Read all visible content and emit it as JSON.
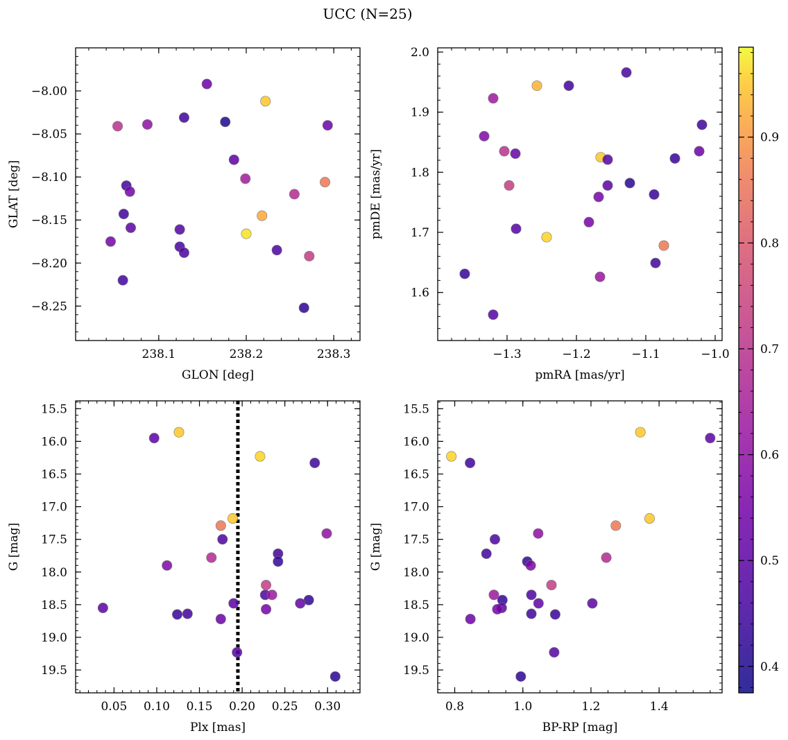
{
  "figure": {
    "title": "UCC (N=25)"
  },
  "colorbar": {
    "min": 0.375,
    "max": 0.985,
    "ticks": [
      0.4,
      0.5,
      0.6,
      0.7,
      0.8,
      0.9
    ],
    "tick_labels": [
      "0.4",
      "0.5",
      "0.6",
      "0.7",
      "0.8",
      "0.9"
    ]
  },
  "chart_data": [
    {
      "type": "scatter",
      "name": "glon-glat",
      "xlabel": "GLON [deg]",
      "ylabel": "GLAT [deg]",
      "xlim": [
        238.005,
        238.33
      ],
      "ylim": [
        -8.29,
        -7.95
      ],
      "xticks": [
        238.1,
        238.2,
        238.3
      ],
      "xtick_labels": [
        "238.1",
        "238.2",
        "238.3"
      ],
      "yticks": [
        -8.0,
        -8.05,
        -8.1,
        -8.15,
        -8.2,
        -8.25
      ],
      "ytick_labels": [
        "−8.00",
        "−8.05",
        "−8.10",
        "−8.15",
        "−8.20",
        "−8.25"
      ],
      "x_minor_step": 0.02,
      "y_minor_step": 0.01,
      "points": [
        [
          238.155,
          -7.992,
          0.53
        ],
        [
          238.222,
          -8.012,
          0.95
        ],
        [
          238.129,
          -8.031,
          0.45
        ],
        [
          238.176,
          -8.036,
          0.4
        ],
        [
          238.053,
          -8.041,
          0.7
        ],
        [
          238.087,
          -8.039,
          0.6
        ],
        [
          238.293,
          -8.04,
          0.53
        ],
        [
          238.186,
          -8.08,
          0.5
        ],
        [
          238.199,
          -8.102,
          0.64
        ],
        [
          238.063,
          -8.11,
          0.45
        ],
        [
          238.067,
          -8.117,
          0.55
        ],
        [
          238.29,
          -8.106,
          0.86
        ],
        [
          238.255,
          -8.12,
          0.68
        ],
        [
          238.06,
          -8.143,
          0.45
        ],
        [
          238.218,
          -8.145,
          0.92
        ],
        [
          238.068,
          -8.159,
          0.5
        ],
        [
          238.124,
          -8.161,
          0.48
        ],
        [
          238.2,
          -8.166,
          0.97
        ],
        [
          238.045,
          -8.175,
          0.55
        ],
        [
          238.124,
          -8.181,
          0.46
        ],
        [
          238.129,
          -8.188,
          0.47
        ],
        [
          238.235,
          -8.185,
          0.47
        ],
        [
          238.272,
          -8.192,
          0.73
        ],
        [
          238.059,
          -8.22,
          0.45
        ],
        [
          238.266,
          -8.252,
          0.42
        ]
      ]
    },
    {
      "type": "scatter",
      "name": "pmra-pmde",
      "xlabel": "pmRA [mas/yr]",
      "ylabel": "pmDE [mas/yr]",
      "xlim": [
        -1.4,
        -0.99
      ],
      "ylim": [
        1.52,
        2.007
      ],
      "xticks": [
        -1.3,
        -1.2,
        -1.1,
        -1.0
      ],
      "xtick_labels": [
        "−1.3",
        "−1.2",
        "−1.1",
        "−1.0"
      ],
      "yticks": [
        1.6,
        1.7,
        1.8,
        1.9,
        2.0
      ],
      "ytick_labels": [
        "1.6",
        "1.7",
        "1.8",
        "1.9",
        "2.0"
      ],
      "x_minor_step": 0.02,
      "y_minor_step": 0.02,
      "points": [
        [
          -1.128,
          1.966,
          0.46
        ],
        [
          -1.257,
          1.944,
          0.93
        ],
        [
          -1.211,
          1.944,
          0.45
        ],
        [
          -1.32,
          1.923,
          0.63
        ],
        [
          -1.333,
          1.86,
          0.57
        ],
        [
          -1.019,
          1.879,
          0.45
        ],
        [
          -1.304,
          1.835,
          0.7
        ],
        [
          -1.288,
          1.831,
          0.52
        ],
        [
          -1.023,
          1.835,
          0.53
        ],
        [
          -1.165,
          1.825,
          0.95
        ],
        [
          -1.155,
          1.821,
          0.49
        ],
        [
          -1.058,
          1.823,
          0.44
        ],
        [
          -1.297,
          1.778,
          0.73
        ],
        [
          -1.155,
          1.778,
          0.5
        ],
        [
          -1.123,
          1.782,
          0.42
        ],
        [
          -1.168,
          1.759,
          0.55
        ],
        [
          -1.088,
          1.763,
          0.44
        ],
        [
          -1.182,
          1.717,
          0.55
        ],
        [
          -1.287,
          1.706,
          0.49
        ],
        [
          -1.243,
          1.692,
          0.96
        ],
        [
          -1.074,
          1.678,
          0.86
        ],
        [
          -1.086,
          1.649,
          0.45
        ],
        [
          -1.166,
          1.626,
          0.62
        ],
        [
          -1.361,
          1.631,
          0.44
        ],
        [
          -1.32,
          1.563,
          0.49
        ]
      ]
    },
    {
      "type": "scatter",
      "name": "plx-g",
      "xlabel": "Plx [mas]",
      "ylabel": "G [mag]",
      "xlim": [
        0.005,
        0.338
      ],
      "ylim": [
        19.85,
        15.38
      ],
      "xticks": [
        0.05,
        0.1,
        0.15,
        0.2,
        0.25,
        0.3
      ],
      "xtick_labels": [
        "0.05",
        "0.10",
        "0.15",
        "0.20",
        "0.25",
        "0.30"
      ],
      "yticks": [
        15.5,
        16.0,
        16.5,
        17.0,
        17.5,
        18.0,
        18.5,
        19.0,
        19.5
      ],
      "ytick_labels": [
        "15.5",
        "16.0",
        "16.5",
        "17.0",
        "17.5",
        "18.0",
        "18.5",
        "19.0",
        "19.5"
      ],
      "x_minor_step": 0.01,
      "y_minor_step": 0.1,
      "vline": {
        "x": 0.195,
        "style": "dotted"
      },
      "points": [
        [
          0.126,
          15.86,
          0.95
        ],
        [
          0.097,
          15.95,
          0.5
        ],
        [
          0.221,
          16.23,
          0.96
        ],
        [
          0.285,
          16.33,
          0.45
        ],
        [
          0.175,
          17.29,
          0.86
        ],
        [
          0.189,
          17.18,
          0.95
        ],
        [
          0.299,
          17.41,
          0.6
        ],
        [
          0.177,
          17.5,
          0.47
        ],
        [
          0.242,
          17.72,
          0.45
        ],
        [
          0.164,
          17.78,
          0.68
        ],
        [
          0.242,
          17.84,
          0.43
        ],
        [
          0.112,
          17.9,
          0.57
        ],
        [
          0.228,
          18.2,
          0.73
        ],
        [
          0.227,
          18.35,
          0.47
        ],
        [
          0.235,
          18.35,
          0.63
        ],
        [
          0.278,
          18.43,
          0.43
        ],
        [
          0.19,
          18.48,
          0.5
        ],
        [
          0.268,
          18.48,
          0.51
        ],
        [
          0.037,
          18.55,
          0.5
        ],
        [
          0.228,
          18.57,
          0.55
        ],
        [
          0.124,
          18.65,
          0.44
        ],
        [
          0.136,
          18.64,
          0.45
        ],
        [
          0.175,
          18.72,
          0.53
        ],
        [
          0.194,
          19.23,
          0.49
        ],
        [
          0.309,
          19.6,
          0.42
        ]
      ]
    },
    {
      "type": "scatter",
      "name": "bprp-g",
      "xlabel": "BP-RP [mag]",
      "ylabel": "G [mag]",
      "xlim": [
        0.75,
        1.585
      ],
      "ylim": [
        19.85,
        15.38
      ],
      "xticks": [
        0.8,
        1.0,
        1.2,
        1.4
      ],
      "xtick_labels": [
        "0.8",
        "1.0",
        "1.2",
        "1.4"
      ],
      "yticks": [
        15.5,
        16.0,
        16.5,
        17.0,
        17.5,
        18.0,
        18.5,
        19.0,
        19.5
      ],
      "ytick_labels": [
        "15.5",
        "16.0",
        "16.5",
        "17.0",
        "17.5",
        "18.0",
        "18.5",
        "19.0",
        "19.5"
      ],
      "x_minor_step": 0.05,
      "y_minor_step": 0.1,
      "points": [
        [
          1.345,
          15.86,
          0.95
        ],
        [
          1.55,
          15.95,
          0.5
        ],
        [
          0.79,
          16.23,
          0.96
        ],
        [
          0.845,
          16.33,
          0.45
        ],
        [
          1.273,
          17.29,
          0.86
        ],
        [
          1.372,
          17.18,
          0.95
        ],
        [
          1.045,
          17.41,
          0.6
        ],
        [
          0.918,
          17.5,
          0.47
        ],
        [
          0.893,
          17.72,
          0.45
        ],
        [
          1.245,
          17.78,
          0.68
        ],
        [
          1.013,
          17.84,
          0.43
        ],
        [
          1.023,
          17.9,
          0.57
        ],
        [
          1.084,
          18.2,
          0.73
        ],
        [
          1.025,
          18.35,
          0.47
        ],
        [
          0.915,
          18.35,
          0.63
        ],
        [
          0.94,
          18.43,
          0.43
        ],
        [
          1.204,
          18.48,
          0.5
        ],
        [
          1.046,
          18.48,
          0.51
        ],
        [
          0.938,
          18.55,
          0.5
        ],
        [
          0.925,
          18.57,
          0.55
        ],
        [
          1.095,
          18.65,
          0.44
        ],
        [
          1.025,
          18.64,
          0.45
        ],
        [
          0.846,
          18.72,
          0.53
        ],
        [
          1.092,
          19.23,
          0.49
        ],
        [
          0.994,
          19.6,
          0.42
        ]
      ]
    }
  ]
}
